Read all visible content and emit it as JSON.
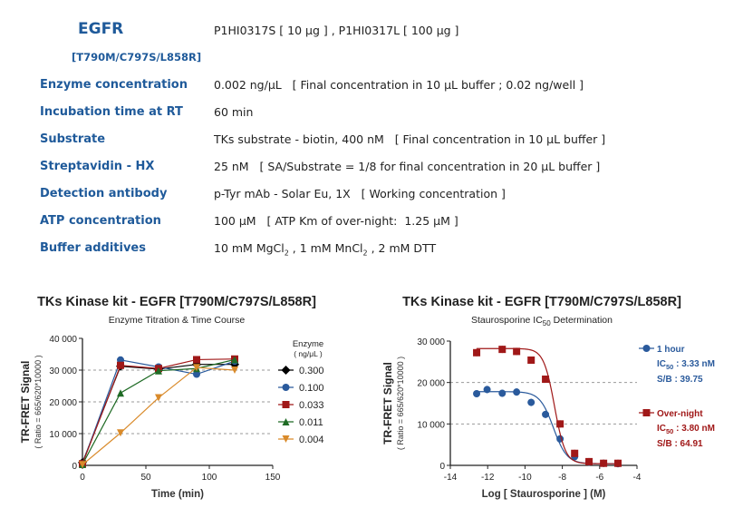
{
  "header": {
    "protein": "EGFR",
    "mutation": "[T790M/C797S/L858R]",
    "catalog": "P1HI0317S [ 10 μg ] , P1HI0317L [ 100 μg ]"
  },
  "rows": [
    {
      "label": "Enzyme concentration",
      "value": "0.002 ng/μL   [ Final concentration in 10 μL buffer ; 0.02 ng/well ]"
    },
    {
      "label": "Incubation time at RT",
      "value": "60 min"
    },
    {
      "label": "Substrate",
      "value": "TKs substrate - biotin, 400 nM   [ Final concentration in 10 μL buffer ]"
    },
    {
      "label": "Streptavidin - HX",
      "value": "25 nM   [ SA/Substrate = 1/8 for final concentration in 20 μL buffer ]"
    },
    {
      "label": "Detection antibody",
      "value": "p-Tyr mAb - Solar Eu, 1X   [ Working concentration ]"
    },
    {
      "label": "ATP concentration",
      "value": "100 μM   [ ATP Km of over-night:  1.25 μM ]"
    },
    {
      "label": "Buffer additives",
      "value_parts": [
        "10 mM MgCl",
        "2",
        " , 1 mM MnCl",
        "2",
        " , 2 mM DTT"
      ]
    }
  ],
  "chart_data": [
    {
      "type": "line",
      "title": "TKs Kinase kit  -  EGFR [T790M/C797S/L858R]",
      "subtitle": "Enzyme Titration & Time Course",
      "xlabel": "Time  (min)",
      "ylabel": "TR-FRET Signal",
      "ylabel2": "( Ratio = 665/620*10000 )",
      "xlim": [
        0,
        150
      ],
      "ylim": [
        0,
        40000
      ],
      "xticks": [
        "0",
        "50",
        "100",
        "150"
      ],
      "yticks": [
        "0",
        "10 000",
        "20 000",
        "30 000",
        "40 000"
      ],
      "grid": "dashed at 10000, 20000, 30000",
      "legend_title": "Enzyme",
      "legend_unit": "( ng/μL )",
      "legend": "right",
      "x": [
        0,
        30,
        60,
        90,
        120
      ],
      "series": [
        {
          "name": "0.300",
          "color": "#000000",
          "marker": "diamond",
          "values": [
            900,
            31200,
            30300,
            31800,
            31800
          ]
        },
        {
          "name": "0.100",
          "color": "#2a5a9c",
          "marker": "circle",
          "values": [
            500,
            33200,
            31000,
            28700,
            32800
          ]
        },
        {
          "name": "0.033",
          "color": "#a01818",
          "marker": "square",
          "values": [
            500,
            31500,
            30500,
            33300,
            33500
          ]
        },
        {
          "name": "0.011",
          "color": "#1f6b25",
          "marker": "triangle-up",
          "values": [
            300,
            22800,
            29800,
            30500,
            33300
          ]
        },
        {
          "name": "0.004",
          "color": "#d98a2a",
          "marker": "triangle-down",
          "values": [
            200,
            10200,
            21300,
            30800,
            30000
          ]
        }
      ]
    },
    {
      "type": "scatter",
      "title": "TKs Kinase kit  -  EGFR [T790M/C797S/L858R]",
      "subtitle_pre": "Staurosporine IC",
      "subtitle_sub": "50",
      "subtitle_post": " Determination",
      "xlabel": "Log [ Staurosporine ]  (M)",
      "ylabel": "TR-FRET Signal",
      "ylabel2": "( Ratio = 665/620*10000 )",
      "xlim": [
        -14,
        -4
      ],
      "ylim": [
        0,
        30000
      ],
      "xticks": [
        "-14",
        "-12",
        "-10",
        "-8",
        "-6",
        "-4"
      ],
      "yticks": [
        "0",
        "10 000",
        "20 000",
        "30 000"
      ],
      "grid": "dashed at 10000, 20000",
      "legend": "right",
      "series": [
        {
          "name": "1 hour",
          "color": "#2a5a9c",
          "marker": "circle",
          "ic50_label": "IC",
          "ic50_value": " : 3.33 nM",
          "sb": "S/B : 39.75",
          "x": [
            -12.59,
            -12.03,
            -11.22,
            -10.45,
            -9.67,
            -8.9,
            -8.12,
            -7.34,
            -6.57,
            -5.79,
            -5.02
          ],
          "values": [
            17300,
            18300,
            17400,
            17700,
            15200,
            12300,
            6400,
            2100,
            800,
            500,
            400
          ],
          "fit": {
            "top": 17800,
            "bottom": 400,
            "logIC50": -8.48,
            "hill": 1.2
          }
        },
        {
          "name": "Over-night",
          "color": "#a01818",
          "marker": "square",
          "ic50_label": "IC",
          "ic50_value": " : 3.80 nM",
          "sb": "S/B : 64.91",
          "x": [
            -12.59,
            -11.22,
            -10.45,
            -9.67,
            -8.9,
            -8.12,
            -7.34,
            -6.57,
            -5.79,
            -5.02
          ],
          "values": [
            27200,
            28000,
            27500,
            25400,
            20800,
            10000,
            2900,
            900,
            500,
            500
          ],
          "fit": {
            "top": 28200,
            "bottom": 400,
            "logIC50": -8.42,
            "hill": 1.5
          }
        }
      ]
    }
  ]
}
